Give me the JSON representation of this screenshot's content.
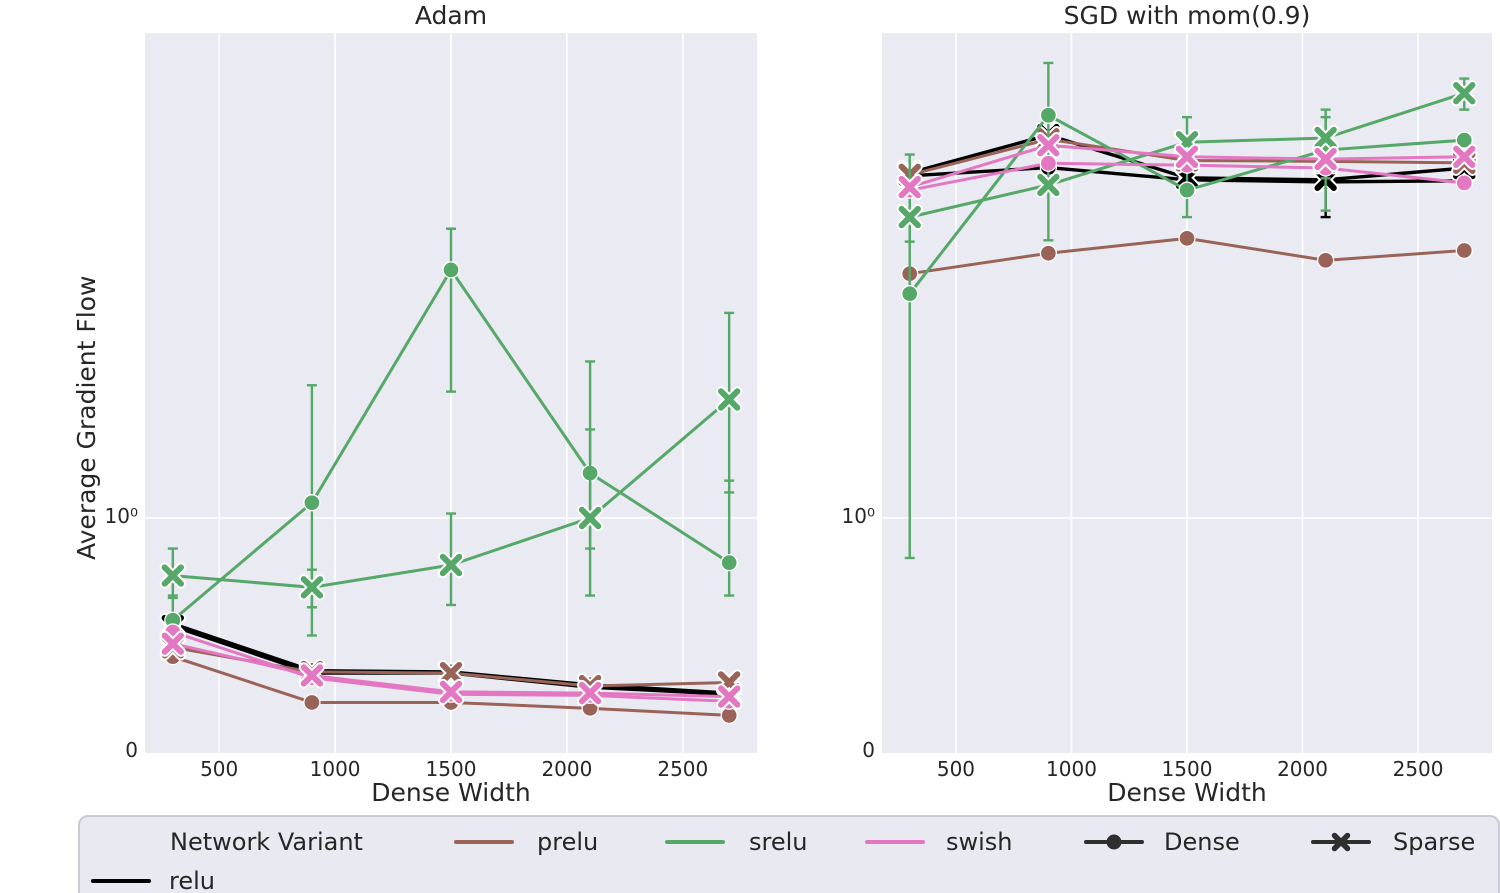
{
  "figure": {
    "ylabel": "Average Gradient Flow",
    "background": "#ffffff",
    "axes_background": "#eaeaf2",
    "grid_color": "#ffffff",
    "legend": {
      "title": "Network Variant",
      "entries": [
        {
          "label": "prelu",
          "color": "#9a6358",
          "kind": "line"
        },
        {
          "label": "srelu",
          "color": "#55a868",
          "kind": "line"
        },
        {
          "label": "swish",
          "color": "#e377c2",
          "kind": "line"
        },
        {
          "label": "Dense",
          "color": "#2f2f2f",
          "kind": "line-circle"
        },
        {
          "label": "Sparse",
          "color": "#2f2f2f",
          "kind": "line-x"
        },
        {
          "label": "relu",
          "color": "#000000",
          "kind": "line"
        }
      ]
    }
  },
  "chart_data": [
    {
      "type": "line",
      "title": "Adam",
      "xlabel": "Dense Width",
      "ylabel": "Average Gradient Flow",
      "yscale": "symlog",
      "grid": true,
      "xlim": [
        180,
        2820
      ],
      "xticks": [
        500,
        1000,
        1500,
        2000,
        2500
      ],
      "yticks": [
        "0",
        "10⁰"
      ],
      "x": [
        300,
        900,
        1500,
        2100,
        2700
      ],
      "series": [
        {
          "variant": "relu",
          "style": "Dense",
          "marker": "circle",
          "color": "#000000",
          "y": [
            0.55,
            0.35,
            0.345,
            0.29,
            0.255
          ],
          "err": null
        },
        {
          "variant": "relu",
          "style": "Sparse",
          "marker": "x",
          "color": "#000000",
          "y": [
            0.54,
            0.34,
            0.34,
            0.28,
            0.25
          ],
          "err": null
        },
        {
          "variant": "prelu",
          "style": "Dense",
          "marker": "circle",
          "color": "#9a6358",
          "y": [
            0.41,
            0.215,
            0.215,
            0.19,
            0.16
          ],
          "err": null
        },
        {
          "variant": "prelu",
          "style": "Sparse",
          "marker": "x",
          "color": "#9a6358",
          "y": [
            0.45,
            0.345,
            0.34,
            0.285,
            0.3
          ],
          "err": null
        },
        {
          "variant": "srelu",
          "style": "Dense",
          "marker": "circle",
          "color": "#55a868",
          "y": [
            0.565,
            1.07,
            3.0,
            1.22,
            0.81
          ],
          "err": [
            [
              0.48,
              0.66
            ],
            [
              0.5,
              1.8
            ],
            [
              1.75,
              3.6
            ],
            [
              0.87,
              2.0
            ],
            [
              0.67,
              1.18
            ]
          ]
        },
        {
          "variant": "srelu",
          "style": "Sparse",
          "marker": "x",
          "color": "#55a868",
          "y": [
            0.755,
            0.705,
            0.8,
            1.0,
            1.69
          ],
          "err": [
            [
              0.67,
              0.87
            ],
            [
              0.62,
              0.78
            ],
            [
              0.63,
              1.02
            ],
            [
              0.67,
              1.48
            ],
            [
              1.12,
              2.48
            ]
          ]
        },
        {
          "variant": "swish",
          "style": "Dense",
          "marker": "circle",
          "color": "#e377c2",
          "y": [
            0.515,
            0.32,
            0.25,
            0.245,
            0.22
          ],
          "err": null
        },
        {
          "variant": "swish",
          "style": "Sparse",
          "marker": "x",
          "color": "#e377c2",
          "y": [
            0.465,
            0.33,
            0.26,
            0.255,
            0.24
          ],
          "err": null
        }
      ]
    },
    {
      "type": "line",
      "title": "SGD with mom(0.9)",
      "xlabel": "Dense Width",
      "ylabel": "Average Gradient Flow",
      "yscale": "symlog",
      "grid": true,
      "xlim": [
        180,
        2820
      ],
      "xticks": [
        500,
        1000,
        1500,
        2000,
        2500
      ],
      "yticks": [
        "0",
        "10⁰"
      ],
      "x": [
        300,
        900,
        1500,
        2100,
        2700
      ],
      "series": [
        {
          "variant": "relu",
          "style": "Dense",
          "marker": "circle",
          "color": "#000000",
          "y": [
            4.55,
            4.72,
            4.47,
            4.43,
            4.45
          ],
          "err": [
            null,
            null,
            null,
            [
              3.79,
              4.6
            ],
            null
          ]
        },
        {
          "variant": "relu",
          "style": "Sparse",
          "marker": "x",
          "color": "#000000",
          "y": [
            4.61,
            5.45,
            4.51,
            4.47,
            4.71
          ],
          "err": null
        },
        {
          "variant": "prelu",
          "style": "Dense",
          "marker": "circle",
          "color": "#9a6358",
          "y": [
            2.95,
            3.23,
            3.45,
            3.13,
            3.27
          ],
          "err": null
        },
        {
          "variant": "prelu",
          "style": "Sparse",
          "marker": "x",
          "color": "#9a6358",
          "y": [
            4.57,
            5.35,
            4.87,
            4.85,
            4.82
          ],
          "err": null
        },
        {
          "variant": "srelu",
          "style": "Dense",
          "marker": "circle",
          "color": "#55a868",
          "y": [
            2.7,
            5.95,
            4.27,
            5.1,
            5.33
          ],
          "err": [
            [
              0.83,
              5.0
            ],
            [
              4.3,
              7.5
            ],
            [
              3.79,
              4.8
            ],
            [
              3.9,
              5.9
            ],
            null
          ]
        },
        {
          "variant": "srelu",
          "style": "Sparse",
          "marker": "x",
          "color": "#55a868",
          "y": [
            3.79,
            4.37,
            5.28,
            5.38,
            6.56
          ],
          "err": [
            [
              3.4,
              4.3
            ],
            [
              3.42,
              5.2
            ],
            [
              4.8,
              5.9
            ],
            [
              4.5,
              6.1
            ],
            [
              6.1,
              7.0
            ]
          ]
        },
        {
          "variant": "swish",
          "style": "Dense",
          "marker": "circle",
          "color": "#e377c2",
          "y": [
            4.27,
            4.81,
            4.77,
            4.71,
            4.41
          ],
          "err": null
        },
        {
          "variant": "swish",
          "style": "Sparse",
          "marker": "x",
          "color": "#e377c2",
          "y": [
            4.33,
            5.21,
            4.95,
            4.9,
            4.95
          ],
          "err": null
        }
      ]
    }
  ]
}
